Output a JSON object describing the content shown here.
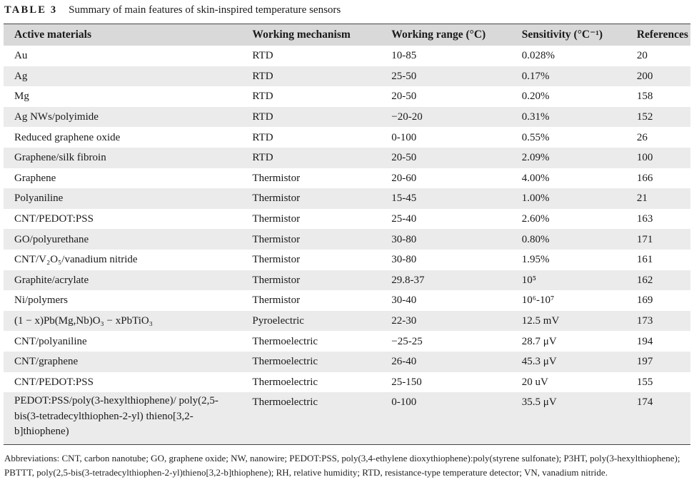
{
  "caption": {
    "label": "TABLE 3",
    "text": "Summary of main features of skin-inspired temperature sensors"
  },
  "table": {
    "headers": [
      "Active materials",
      "Working mechanism",
      "Working range (°C)",
      "Sensitivity (°C⁻¹)",
      "References"
    ],
    "rows": [
      {
        "material": "Au",
        "mechanism": "RTD",
        "range": "10-85",
        "sensitivity": "0.028%",
        "ref": "20"
      },
      {
        "material": "Ag",
        "mechanism": "RTD",
        "range": "25-50",
        "sensitivity": "0.17%",
        "ref": "200"
      },
      {
        "material": "Mg",
        "mechanism": "RTD",
        "range": "20-50",
        "sensitivity": "0.20%",
        "ref": "158"
      },
      {
        "material": "Ag NWs/polyimide",
        "mechanism": "RTD",
        "range": "−20-20",
        "sensitivity": "0.31%",
        "ref": "152"
      },
      {
        "material": "Reduced graphene oxide",
        "mechanism": "RTD",
        "range": "0-100",
        "sensitivity": "0.55%",
        "ref": "26"
      },
      {
        "material": "Graphene/silk fibroin",
        "mechanism": "RTD",
        "range": "20-50",
        "sensitivity": "2.09%",
        "ref": "100"
      },
      {
        "material": "Graphene",
        "mechanism": "Thermistor",
        "range": "20-60",
        "sensitivity": "4.00%",
        "ref": "166"
      },
      {
        "material": "Polyaniline",
        "mechanism": "Thermistor",
        "range": "15-45",
        "sensitivity": "1.00%",
        "ref": "21"
      },
      {
        "material": "CNT/PEDOT:PSS",
        "mechanism": "Thermistor",
        "range": "25-40",
        "sensitivity": "2.60%",
        "ref": "163"
      },
      {
        "material": "GO/polyurethane",
        "mechanism": "Thermistor",
        "range": "30-80",
        "sensitivity": "0.80%",
        "ref": "171"
      },
      {
        "material": "CNT/V₂O₅/vanadium nitride",
        "mechanism": "Thermistor",
        "range": "30-80",
        "sensitivity": "1.95%",
        "ref": "161"
      },
      {
        "material": "Graphite/acrylate",
        "mechanism": "Thermistor",
        "range": "29.8-37",
        "sensitivity": "10⁵",
        "ref": "162"
      },
      {
        "material": "Ni/polymers",
        "mechanism": "Thermistor",
        "range": "30-40",
        "sensitivity": "10⁶-10⁷",
        "ref": "169"
      },
      {
        "material": "(1 − x)Pb(Mg,Nb)O₃ − xPbTiO₃",
        "mechanism": "Pyroelectric",
        "range": "22-30",
        "sensitivity": "12.5 mV",
        "ref": "173"
      },
      {
        "material": "CNT/polyaniline",
        "mechanism": "Thermoelectric",
        "range": "−25-25",
        "sensitivity": "28.7 μV",
        "ref": "194"
      },
      {
        "material": "CNT/graphene",
        "mechanism": "Thermoelectric",
        "range": "26-40",
        "sensitivity": "45.3 μV",
        "ref": "197"
      },
      {
        "material": "CNT/PEDOT:PSS",
        "mechanism": "Thermoelectric",
        "range": "25-150",
        "sensitivity": "20 uV",
        "ref": "155"
      },
      {
        "material": "PEDOT:PSS/poly(3-hexylthiophene)/ poly(2,5-bis(3-tetradecylthiophen-2-yl) thieno[3,2-b]thiophene)",
        "mechanism": "Thermoelectric",
        "range": "0-100",
        "sensitivity": "35.5 μV",
        "ref": "174"
      }
    ]
  },
  "footnote": "Abbreviations: CNT, carbon nanotube; GO, graphene oxide; NW, nanowire; PEDOT:PSS, poly(3,4-ethylene dioxythiophene):poly(styrene sulfonate); P3HT, poly(3-hexylthiophene); PBTTT, poly(2,5-bis(3-tetradecylthiophen-2-yl)thieno[3,2-b]thiophene); RH, relative humidity; RTD, resistance-type temperature detector; VN, vanadium nitride.",
  "colors": {
    "header_bg": "#d9d9d9",
    "stripe_bg": "#ebebeb",
    "rule": "#444444"
  }
}
